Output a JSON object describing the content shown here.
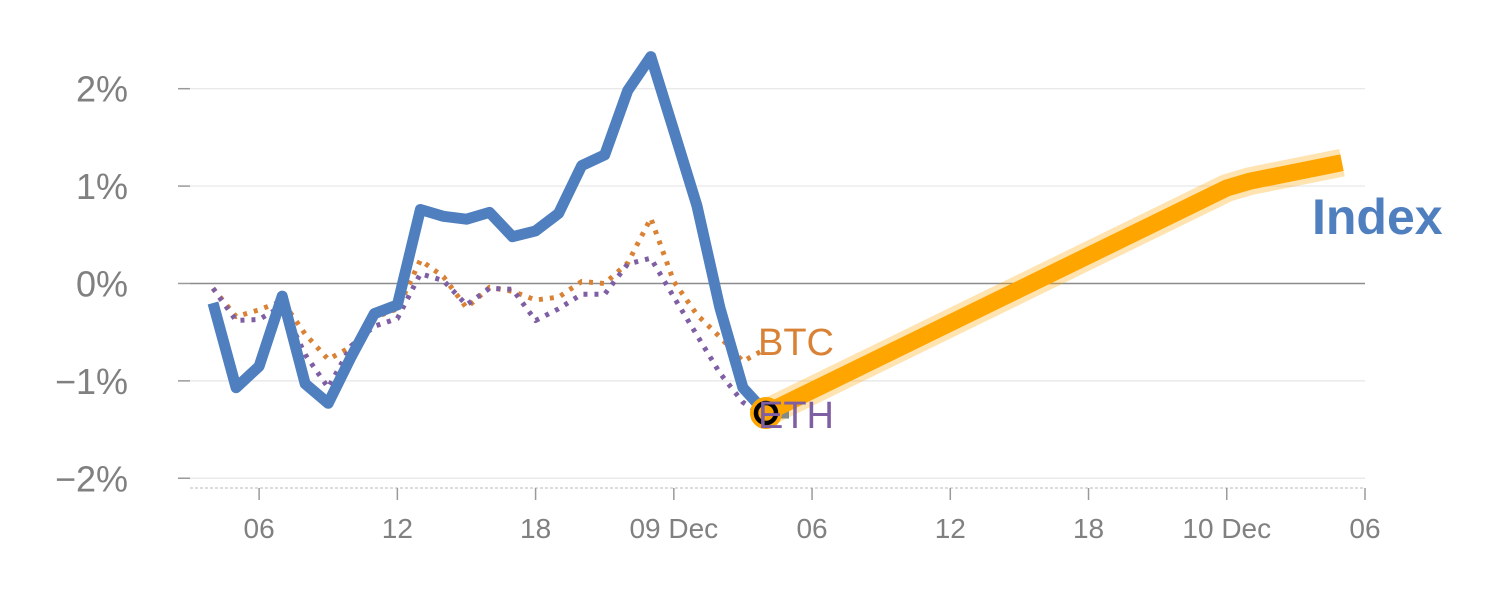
{
  "chart_data": {
    "type": "line",
    "title": "",
    "xlabel": "",
    "ylabel": "",
    "ylim": [
      -2.1,
      2.5
    ],
    "xlim": [
      0,
      51
    ],
    "grid": true,
    "y_ticks": [
      {
        "value": 2,
        "label": "2%"
      },
      {
        "value": 1,
        "label": "1%"
      },
      {
        "value": 0,
        "label": "0%"
      },
      {
        "value": -1,
        "label": "−1%"
      },
      {
        "value": -2,
        "label": "−2%"
      }
    ],
    "x_ticks": [
      {
        "value": 3,
        "label": "06"
      },
      {
        "value": 9,
        "label": "12"
      },
      {
        "value": 15,
        "label": "18"
      },
      {
        "value": 21,
        "label": "09 Dec"
      },
      {
        "value": 27,
        "label": "06"
      },
      {
        "value": 33,
        "label": "12"
      },
      {
        "value": 39,
        "label": "18"
      },
      {
        "value": 45,
        "label": "10 Dec"
      },
      {
        "value": 51,
        "label": "06"
      }
    ],
    "series": [
      {
        "name": "Index",
        "style": "solid",
        "color": "#4f7fbf",
        "x": [
          1,
          2,
          3,
          4,
          5,
          6,
          7,
          8,
          9,
          10,
          11,
          12,
          13,
          14,
          15,
          16,
          17,
          18,
          19,
          20,
          21,
          22,
          23,
          24,
          25,
          26
        ],
        "values": [
          -0.2,
          -1.07,
          -0.85,
          -0.13,
          -1.03,
          -1.23,
          -0.75,
          -0.31,
          -0.22,
          0.76,
          0.69,
          0.66,
          0.73,
          0.48,
          0.54,
          0.72,
          1.21,
          1.32,
          1.98,
          2.33,
          1.57,
          0.8,
          -0.25,
          -1.07,
          -1.33,
          -1.33
        ]
      },
      {
        "name": "BTC",
        "style": "dotted",
        "color": "#d98235",
        "x": [
          1,
          2,
          3,
          4,
          5,
          6,
          7,
          8,
          9,
          10,
          11,
          12,
          13,
          14,
          15,
          16,
          17,
          18,
          19,
          20,
          21,
          22,
          23,
          24,
          25
        ],
        "values": [
          -0.05,
          -0.34,
          -0.27,
          -0.18,
          -0.52,
          -0.78,
          -0.65,
          -0.35,
          -0.26,
          0.24,
          0.07,
          -0.25,
          -0.04,
          -0.08,
          -0.17,
          -0.14,
          0.02,
          0.0,
          0.21,
          0.67,
          0.02,
          -0.32,
          -0.55,
          -0.8,
          -0.67
        ]
      },
      {
        "name": "ETH",
        "style": "dotted",
        "color": "#7e5fa3",
        "x": [
          1,
          2,
          3,
          4,
          5,
          6,
          7,
          8,
          9,
          10,
          11,
          12,
          13,
          14,
          15,
          16,
          17,
          18,
          19,
          20,
          21,
          22,
          23,
          24,
          25
        ],
        "values": [
          -0.05,
          -0.38,
          -0.37,
          -0.23,
          -0.73,
          -1.07,
          -0.64,
          -0.44,
          -0.36,
          0.1,
          0.03,
          -0.22,
          -0.05,
          -0.06,
          -0.38,
          -0.26,
          -0.11,
          -0.11,
          0.2,
          0.26,
          -0.14,
          -0.53,
          -0.92,
          -1.22,
          -1.37
        ]
      },
      {
        "name": "",
        "style": "highlight",
        "color": "#ffa500",
        "x": [
          25,
          45,
          46,
          50
        ],
        "values": [
          -1.33,
          0.98,
          1.05,
          1.24
        ]
      }
    ],
    "marker": {
      "x": 25,
      "value": -1.33,
      "color": "#ffa500"
    },
    "labels": {
      "index": {
        "text": "Index",
        "color": "#4f7fbf"
      },
      "btc": {
        "text": "BTC",
        "color": "#d98235"
      },
      "eth": {
        "text": "ETH",
        "color": "#7e5fa3"
      }
    }
  }
}
